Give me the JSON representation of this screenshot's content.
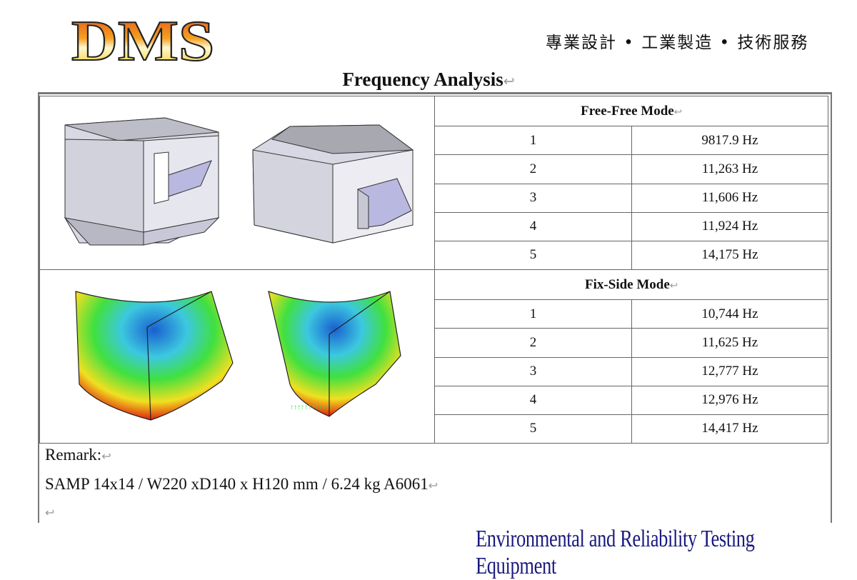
{
  "header": {
    "logo_text": "DMS",
    "tagline": "專業設計 • 工業製造 • 技術服務"
  },
  "title": "Frequency Analysis",
  "free_free": {
    "heading": "Free-Free Mode",
    "rows": [
      {
        "mode": "1",
        "freq": "9817.9 Hz"
      },
      {
        "mode": "2",
        "freq": "11,263 Hz"
      },
      {
        "mode": "3",
        "freq": "11,606 Hz"
      },
      {
        "mode": "4",
        "freq": "11,924 Hz"
      },
      {
        "mode": "5",
        "freq": "14,175 Hz"
      }
    ]
  },
  "fix_side": {
    "heading": "Fix-Side Mode",
    "rows": [
      {
        "mode": "1",
        "freq": "10,744 Hz"
      },
      {
        "mode": "2",
        "freq": "11,625 Hz"
      },
      {
        "mode": "3",
        "freq": "12,777 Hz"
      },
      {
        "mode": "4",
        "freq": "12,976 Hz"
      },
      {
        "mode": "5",
        "freq": "14,417 Hz"
      }
    ]
  },
  "remark": {
    "label": "Remark:",
    "text": "SAMP 14x14 / W220 xD140 x H120 mm / 6.24 kg A6061"
  },
  "footer": "Environmental and Reliability Testing Equipment",
  "colors": {
    "footer": "#1a1a80",
    "logo_top": "#e04a1a",
    "logo_bottom": "#f5c400"
  }
}
